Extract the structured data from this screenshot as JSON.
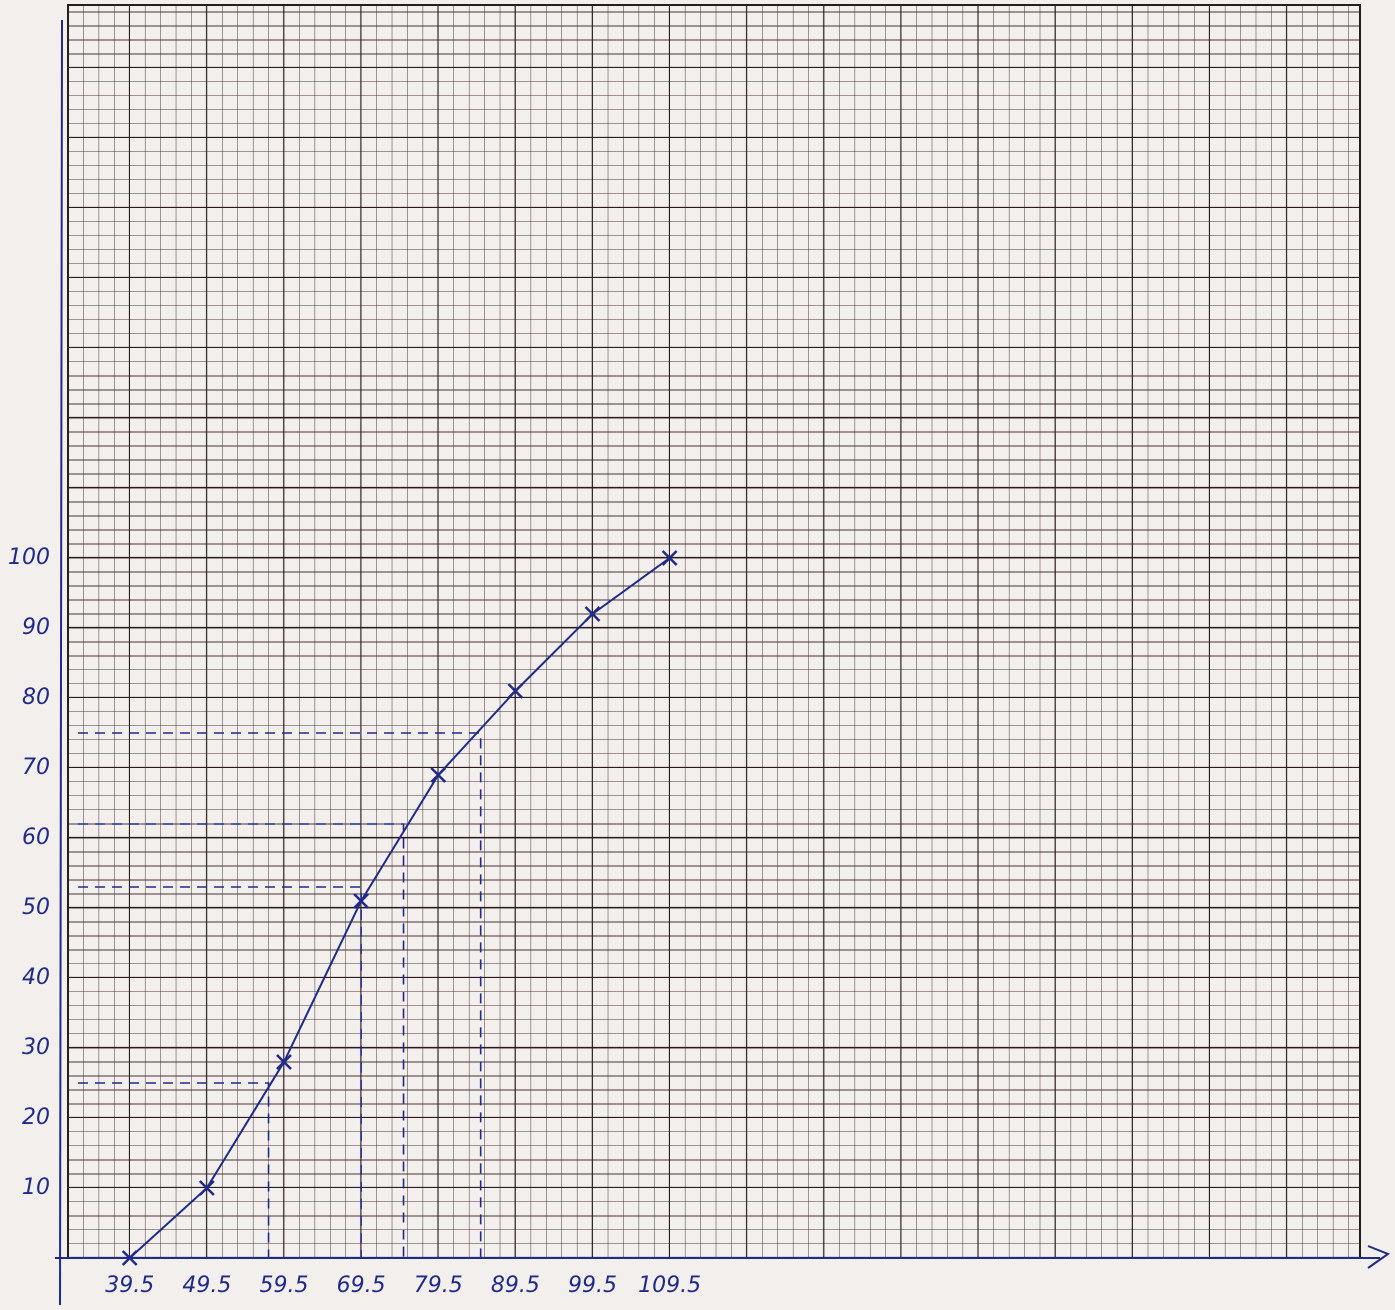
{
  "chart_data": {
    "type": "line",
    "x": [
      39.5,
      49.5,
      59.5,
      69.5,
      79.5,
      89.5,
      99.5,
      109.5
    ],
    "series": [
      {
        "color": "#1f2a8a",
        "values": [
          0,
          10,
          28,
          51,
          69,
          81,
          92,
          100
        ]
      }
    ],
    "xlim": [
      31.5,
      199
    ],
    "ylim": [
      0,
      179
    ],
    "xticks": [
      39.5,
      49.5,
      59.5,
      69.5,
      79.5,
      89.5,
      99.5,
      109.5
    ],
    "yticks": [
      10,
      20,
      30,
      40,
      50,
      60,
      70,
      80,
      90,
      100
    ],
    "reading_lines": [
      {
        "x": 57.5,
        "y": 25
      },
      {
        "x": 69.5,
        "y": 53
      },
      {
        "x": 75,
        "y": 62
      },
      {
        "x": 85,
        "y": 75
      }
    ],
    "grid": true
  }
}
